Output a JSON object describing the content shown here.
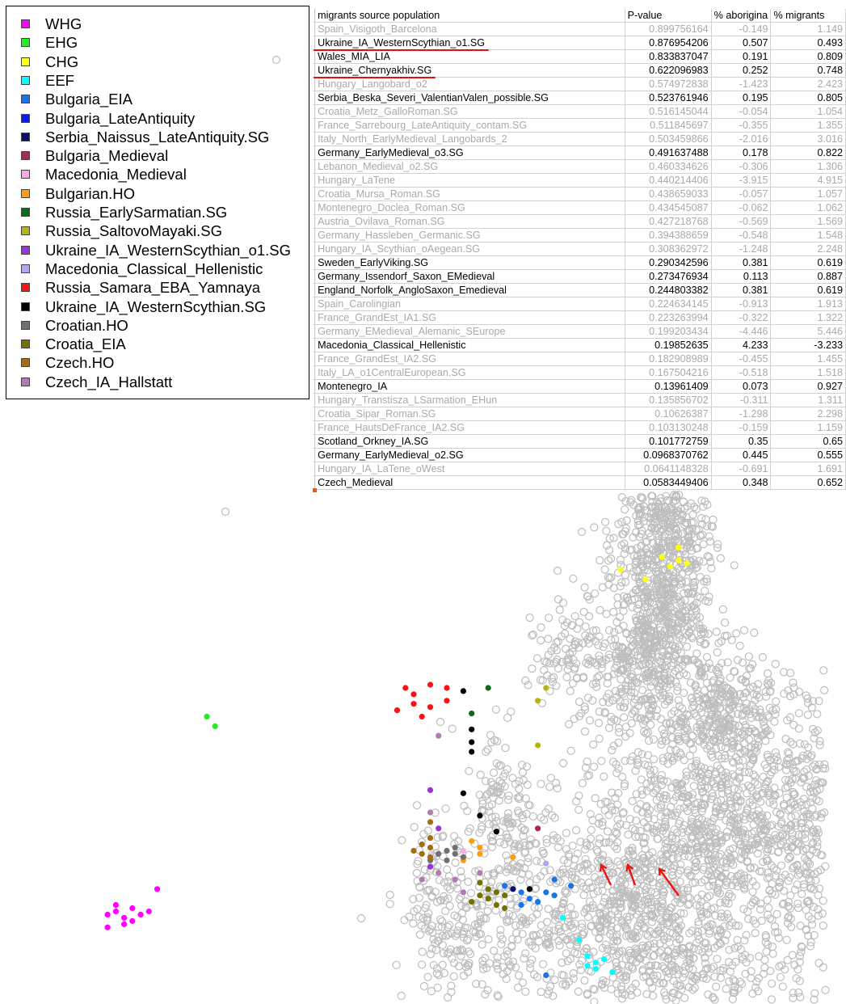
{
  "legend": {
    "items": [
      {
        "label": "WHG",
        "color": "#ff00ff"
      },
      {
        "label": "EHG",
        "color": "#22ee22"
      },
      {
        "label": "CHG",
        "color": "#ffff11"
      },
      {
        "label": "EEF",
        "color": "#00ffff"
      },
      {
        "label": "Bulgaria_EIA",
        "color": "#1e72e8"
      },
      {
        "label": "Bulgaria_LateAntiquity",
        "color": "#0c1cee"
      },
      {
        "label": "Serbia_Naissus_LateAntiquity.SG",
        "color": "#0b0f6e"
      },
      {
        "label": "Bulgaria_Medieval",
        "color": "#a82b4f"
      },
      {
        "label": "Macedonia_Medieval",
        "color": "#f9a9e6"
      },
      {
        "label": "Bulgarian.HO",
        "color": "#ff9d0a"
      },
      {
        "label": "Russia_EarlySarmatian.SG",
        "color": "#0c6b18"
      },
      {
        "label": "Russia_SaltovoMayaki.SG",
        "color": "#b5b510"
      },
      {
        "label": "Ukraine_IA_WesternScythian_o1.SG",
        "color": "#9933dd"
      },
      {
        "label": "Macedonia_Classical_Hellenistic",
        "color": "#a9a9f7"
      },
      {
        "label": "Russia_Samara_EBA_Yamnaya",
        "color": "#ff1111"
      },
      {
        "label": "Ukraine_IA_WesternScythian.SG",
        "color": "#000000"
      },
      {
        "label": "Croatian.HO",
        "color": "#707070"
      },
      {
        "label": "Croatia_EIA",
        "color": "#727200"
      },
      {
        "label": "Czech.HO",
        "color": "#a86d0c"
      },
      {
        "label": "Czech_IA_Hallstatt",
        "color": "#b07ab3"
      }
    ]
  },
  "table": {
    "headers": [
      "migrants source population",
      "P-value",
      "% aborigina",
      "% migrants"
    ],
    "rows": [
      {
        "name": "Spain_Visigoth_Barcelona",
        "p": "0.899756164",
        "a": "-0.149",
        "m": "1.149",
        "faded": true
      },
      {
        "name": "Ukraine_IA_WesternScythian_o1.SG",
        "p": "0.876954206",
        "a": "0.507",
        "m": "0.493",
        "faded": false,
        "underline": true
      },
      {
        "name": "Wales_MIA_LIA",
        "p": "0.833837047",
        "a": "0.191",
        "m": "0.809",
        "faded": false
      },
      {
        "name": "Ukraine_Chernyakhiv.SG",
        "p": "0.622096983",
        "a": "0.252",
        "m": "0.748",
        "faded": false,
        "underline": true
      },
      {
        "name": "Hungary_Langobard_o2",
        "p": "0.574972838",
        "a": "-1.423",
        "m": "2.423",
        "faded": true
      },
      {
        "name": "Serbia_Beska_Severi_ValentianValen_possible.SG",
        "p": "0.523761946",
        "a": "0.195",
        "m": "0.805",
        "faded": false
      },
      {
        "name": "Croatia_Metz_GalloRoman.SG",
        "p": "0.516145044",
        "a": "-0.054",
        "m": "1.054",
        "faded": true
      },
      {
        "name": "France_Sarrebourg_LateAntiquity_contam.SG",
        "p": "0.511845697",
        "a": "-0.355",
        "m": "1.355",
        "faded": true
      },
      {
        "name": "Italy_North_EarlyMedieval_Langobards_2",
        "p": "0.503459866",
        "a": "-2.016",
        "m": "3.016",
        "faded": true
      },
      {
        "name": "Germany_EarlyMedieval_o3.SG",
        "p": "0.491637488",
        "a": "0.178",
        "m": "0.822",
        "faded": false
      },
      {
        "name": "Lebanon_Medieval_o2.SG",
        "p": "0.460334626",
        "a": "-0.306",
        "m": "1.306",
        "faded": true
      },
      {
        "name": "Hungary_LaTene",
        "p": "0.440214406",
        "a": "-3.915",
        "m": "4.915",
        "faded": true
      },
      {
        "name": "Croatia_Mursa_Roman.SG",
        "p": "0.438659033",
        "a": "-0.057",
        "m": "1.057",
        "faded": true
      },
      {
        "name": "Montenegro_Doclea_Roman.SG",
        "p": "0.434545087",
        "a": "-0.062",
        "m": "1.062",
        "faded": true
      },
      {
        "name": "Austria_Ovilava_Roman.SG",
        "p": "0.427218768",
        "a": "-0.569",
        "m": "1.569",
        "faded": true
      },
      {
        "name": "Germany_Hassleben_Germanic.SG",
        "p": "0.394388659",
        "a": "-0.548",
        "m": "1.548",
        "faded": true
      },
      {
        "name": "Hungary_IA_Scythian_oAegean.SG",
        "p": "0.308362972",
        "a": "-1.248",
        "m": "2.248",
        "faded": true
      },
      {
        "name": "Sweden_EarlyViking.SG",
        "p": "0.290342596",
        "a": "0.381",
        "m": "0.619",
        "faded": false
      },
      {
        "name": "Germany_Issendorf_Saxon_EMedieval",
        "p": "0.273476934",
        "a": "0.113",
        "m": "0.887",
        "faded": false
      },
      {
        "name": "England_Norfolk_AngloSaxon_Emedieval",
        "p": "0.244803382",
        "a": "0.381",
        "m": "0.619",
        "faded": false
      },
      {
        "name": "Spain_Carolingian",
        "p": "0.224634145",
        "a": "-0.913",
        "m": "1.913",
        "faded": true
      },
      {
        "name": "France_GrandEst_IA1.SG",
        "p": "0.223263994",
        "a": "-0.322",
        "m": "1.322",
        "faded": true
      },
      {
        "name": "Germany_EMedieval_Alemanic_SEurope",
        "p": "0.199203434",
        "a": "-4.446",
        "m": "5.446",
        "faded": true
      },
      {
        "name": "Macedonia_Classical_Hellenistic",
        "p": "0.19852635",
        "a": "4.233",
        "m": "-3.233",
        "faded": false
      },
      {
        "name": "France_GrandEst_IA2.SG",
        "p": "0.182908989",
        "a": "-0.455",
        "m": "1.455",
        "faded": true
      },
      {
        "name": "Italy_LA_o1CentralEuropean.SG",
        "p": "0.167504216",
        "a": "-0.518",
        "m": "1.518",
        "faded": true
      },
      {
        "name": "Montenegro_IA",
        "p": "0.13961409",
        "a": "0.073",
        "m": "0.927",
        "faded": false
      },
      {
        "name": "Hungary_Transtisza_LSarmation_EHun",
        "p": "0.135856702",
        "a": "-0.311",
        "m": "1.311",
        "faded": true
      },
      {
        "name": "Croatia_Sipar_Roman.SG",
        "p": "0.10626387",
        "a": "-1.298",
        "m": "2.298",
        "faded": true
      },
      {
        "name": "France_HautsDeFrance_IA2.SG",
        "p": "0.103130248",
        "a": "-0.159",
        "m": "1.159",
        "faded": true
      },
      {
        "name": "Scotland_Orkney_IA.SG",
        "p": "0.101772759",
        "a": "0.35",
        "m": "0.65",
        "faded": false
      },
      {
        "name": "Germany_EarlyMedieval_o2.SG",
        "p": "0.0968370762",
        "a": "0.445",
        "m": "0.555",
        "faded": false
      },
      {
        "name": "Hungary_IA_LaTene_oWest",
        "p": "0.0641148328",
        "a": "-0.691",
        "m": "1.691",
        "faded": true
      },
      {
        "name": "Czech_Medieval",
        "p": "0.0583449406",
        "a": "0.348",
        "m": "0.652",
        "faded": false
      }
    ]
  },
  "chart_data": {
    "type": "scatter",
    "title": "",
    "xlabel": "",
    "ylabel": "",
    "background_color": "#bdbdbd",
    "background_style": "hollow grey circles (reference samples)",
    "highlight_arrow_color": "#ee1111",
    "series": [
      {
        "name": "WHG",
        "color": "#ff00ff",
        "points": [
          [
            0.13,
            -0.32
          ],
          [
            0.14,
            -0.31
          ],
          [
            0.15,
            -0.33
          ],
          [
            0.16,
            -0.3
          ],
          [
            0.14,
            -0.29
          ],
          [
            0.17,
            -0.32
          ],
          [
            0.15,
            -0.35
          ],
          [
            0.16,
            -0.34
          ],
          [
            0.13,
            -0.36
          ],
          [
            0.18,
            -0.31
          ],
          [
            0.19,
            -0.24
          ]
        ]
      },
      {
        "name": "EHG",
        "color": "#22ee22",
        "points": [
          [
            0.25,
            0.3
          ],
          [
            0.26,
            0.27
          ]
        ]
      },
      {
        "name": "CHG",
        "color": "#ffff11",
        "points": [
          [
            0.8,
            0.8
          ],
          [
            0.81,
            0.77
          ],
          [
            0.82,
            0.79
          ],
          [
            0.83,
            0.78
          ],
          [
            0.82,
            0.83
          ],
          [
            0.78,
            0.73
          ],
          [
            0.75,
            0.76
          ]
        ]
      },
      {
        "name": "EEF",
        "color": "#00ffff",
        "points": [
          [
            0.71,
            -0.45
          ],
          [
            0.72,
            -0.47
          ],
          [
            0.73,
            -0.46
          ],
          [
            0.72,
            -0.49
          ],
          [
            0.74,
            -0.5
          ],
          [
            0.71,
            -0.48
          ],
          [
            0.7,
            -0.4
          ],
          [
            0.68,
            -0.33
          ]
        ]
      },
      {
        "name": "Bulgaria_EIA",
        "color": "#1e72e8",
        "points": [
          [
            0.66,
            -0.25
          ],
          [
            0.67,
            -0.26
          ],
          [
            0.64,
            -0.27
          ],
          [
            0.63,
            -0.25
          ],
          [
            0.65,
            -0.28
          ],
          [
            0.61,
            -0.23
          ],
          [
            0.63,
            -0.29
          ],
          [
            0.67,
            -0.21
          ],
          [
            0.69,
            -0.23
          ],
          [
            0.66,
            -0.51
          ]
        ]
      },
      {
        "name": "Bulgaria_LateAntiquity",
        "color": "#0c1cee",
        "points": [
          [
            0.64,
            -0.24
          ]
        ]
      },
      {
        "name": "Serbia_Naissus_LateAntiquity.SG",
        "color": "#0b0f6e",
        "points": [
          [
            0.62,
            -0.24
          ]
        ]
      },
      {
        "name": "Bulgaria_Medieval",
        "color": "#a82b4f",
        "points": [
          [
            0.65,
            -0.05
          ]
        ]
      },
      {
        "name": "Macedonia_Medieval",
        "color": "#f9a9e6",
        "points": [
          [
            0.56,
            -0.12
          ]
        ]
      },
      {
        "name": "Bulgarian.HO",
        "color": "#ff9d0a",
        "points": [
          [
            0.57,
            -0.09
          ],
          [
            0.58,
            -0.11
          ],
          [
            0.6,
            -0.06
          ],
          [
            0.58,
            -0.13
          ],
          [
            0.62,
            -0.14
          ],
          [
            0.56,
            -0.15
          ]
        ]
      },
      {
        "name": "Russia_EarlySarmatian.SG",
        "color": "#0c6b18",
        "points": [
          [
            0.59,
            0.39
          ],
          [
            0.57,
            0.31
          ]
        ]
      },
      {
        "name": "Russia_SaltovoMayaki.SG",
        "color": "#b5b510",
        "points": [
          [
            0.66,
            0.39
          ],
          [
            0.65,
            0.35
          ],
          [
            0.65,
            0.21
          ]
        ]
      },
      {
        "name": "Ukraine_IA_WesternScythian_o1.SG",
        "color": "#9933dd",
        "points": [
          [
            0.52,
            0.07
          ],
          [
            0.53,
            -0.05
          ],
          [
            0.52,
            -0.17
          ]
        ]
      },
      {
        "name": "Macedonia_Classical_Hellenistic",
        "color": "#a9a9f7",
        "points": [
          [
            0.66,
            -0.16
          ]
        ]
      },
      {
        "name": "Russia_Samara_EBA_Yamnaya",
        "color": "#ff1111",
        "points": [
          [
            0.49,
            0.39
          ],
          [
            0.5,
            0.37
          ],
          [
            0.52,
            0.4
          ],
          [
            0.54,
            0.39
          ],
          [
            0.5,
            0.34
          ],
          [
            0.52,
            0.33
          ],
          [
            0.48,
            0.32
          ],
          [
            0.51,
            0.3
          ],
          [
            0.54,
            0.35
          ]
        ]
      },
      {
        "name": "Ukraine_IA_WesternScythian.SG",
        "color": "#000000",
        "points": [
          [
            0.56,
            0.38
          ],
          [
            0.57,
            0.26
          ],
          [
            0.57,
            0.22
          ],
          [
            0.57,
            0.19
          ],
          [
            0.56,
            0.06
          ],
          [
            0.58,
            -0.01
          ],
          [
            0.6,
            -0.06
          ],
          [
            0.64,
            -0.24
          ]
        ]
      },
      {
        "name": "Croatian.HO",
        "color": "#707070",
        "points": [
          [
            0.54,
            -0.12
          ],
          [
            0.55,
            -0.13
          ],
          [
            0.54,
            -0.15
          ],
          [
            0.53,
            -0.13
          ],
          [
            0.55,
            -0.11
          ],
          [
            0.52,
            -0.15
          ],
          [
            0.56,
            -0.14
          ]
        ]
      },
      {
        "name": "Croatia_EIA",
        "color": "#727200",
        "points": [
          [
            0.58,
            -0.22
          ],
          [
            0.59,
            -0.24
          ],
          [
            0.6,
            -0.25
          ],
          [
            0.59,
            -0.27
          ],
          [
            0.6,
            -0.29
          ],
          [
            0.61,
            -0.26
          ],
          [
            0.58,
            -0.26
          ],
          [
            0.61,
            -0.3
          ],
          [
            0.57,
            -0.28
          ]
        ]
      },
      {
        "name": "Czech.HO",
        "color": "#a86d0c",
        "points": [
          [
            0.51,
            -0.1
          ],
          [
            0.52,
            -0.11
          ],
          [
            0.51,
            -0.13
          ],
          [
            0.52,
            -0.14
          ],
          [
            0.5,
            -0.12
          ],
          [
            0.52,
            -0.08
          ],
          [
            0.52,
            -0.03
          ]
        ]
      },
      {
        "name": "Czech_IA_Hallstatt",
        "color": "#b07ab3",
        "points": [
          [
            0.53,
            0.24
          ],
          [
            0.53,
            -0.19
          ],
          [
            0.51,
            -0.21
          ],
          [
            0.56,
            -0.25
          ],
          [
            0.55,
            -0.21
          ],
          [
            0.58,
            -0.19
          ],
          [
            0.52,
            0.0
          ]
        ]
      }
    ]
  }
}
